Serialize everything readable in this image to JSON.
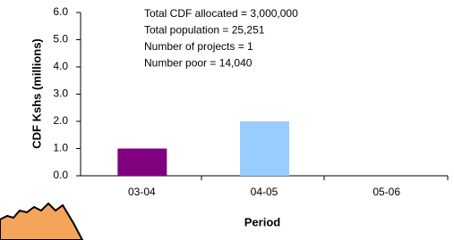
{
  "chart_data": {
    "type": "bar",
    "categories": [
      "03-04",
      "04-05",
      "05-06"
    ],
    "values": [
      1.0,
      2.0,
      null
    ],
    "colors": [
      "#800080",
      "#99ccff",
      null
    ],
    "ylim": [
      0,
      6
    ],
    "yticks": [
      {
        "value": 0,
        "label": "0.0"
      },
      {
        "value": 1,
        "label": "1.0"
      },
      {
        "value": 2,
        "label": "2.0"
      },
      {
        "value": 3,
        "label": "3.0"
      },
      {
        "value": 4,
        "label": "4.0"
      },
      {
        "value": 5,
        "label": "5.0"
      },
      {
        "value": 6,
        "label": "6.0"
      }
    ],
    "y_label": "CDF Kshs (millions)",
    "x_label": "Period",
    "annotations": [
      "Total CDF allocated = 3,000,000",
      "Total population = 25,251",
      "Number of projects = 1",
      "Number poor = 14,040"
    ]
  }
}
